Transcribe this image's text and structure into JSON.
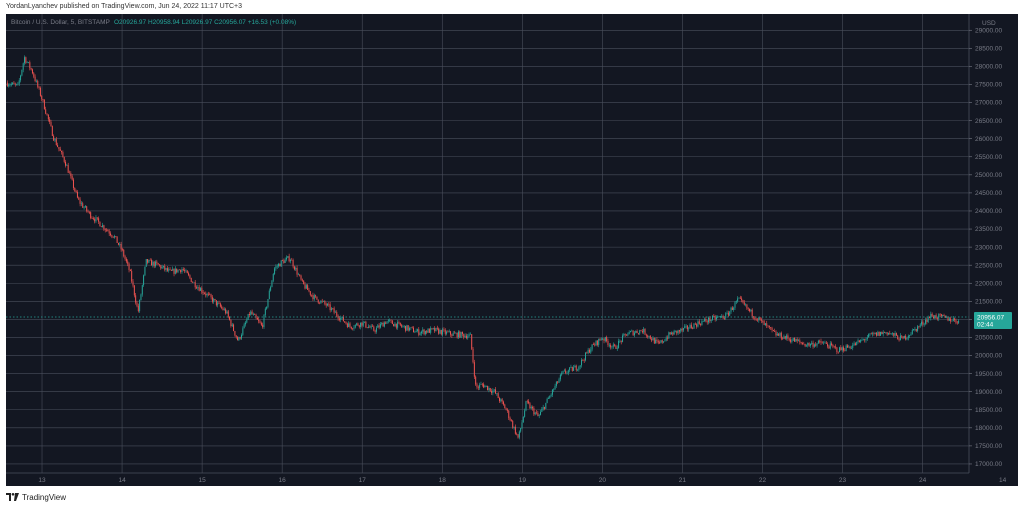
{
  "header": {
    "publisher_line": "YordanLyanchev published on TradingView.com, Jun 24, 2022 11:17 UTC+3"
  },
  "footer": {
    "brand_label": "TradingView",
    "logo_icon": "tradingview-logo-icon"
  },
  "colors": {
    "background": "#131722",
    "grid": "#4a4f5c",
    "up": "#26a69a",
    "down": "#ef5350",
    "text": "#787b86",
    "price_tag": "#26a69a"
  },
  "chart_data": {
    "type": "candlestick",
    "title": "Bitcoin / U.S. Dollar, 5, BITSTAMP",
    "ohlc_label": "O20926.97 H20958.94 L20926.97 C20956.07 +16.53 (+0.08%)",
    "ohlc_values": [
      "20926.97",
      "20958.94",
      "20926.97",
      "20956.07",
      "+16.53 (+0.08%)"
    ],
    "currency_label": "USD",
    "y_ticks": [
      "29000.00",
      "28500.00",
      "28000.00",
      "27500.00",
      "27000.00",
      "26500.00",
      "26000.00",
      "25500.00",
      "25000.00",
      "24500.00",
      "24000.00",
      "23500.00",
      "23000.00",
      "22500.00",
      "22000.00",
      "21500.00",
      "21000.00",
      "20500.00",
      "20000.00",
      "19500.00",
      "19000.00",
      "18500.00",
      "18000.00",
      "17500.00",
      "17000.00"
    ],
    "x_ticks": [
      "13",
      "14",
      "15",
      "16",
      "17",
      "18",
      "19",
      "20",
      "21",
      "22",
      "23",
      "24",
      "14"
    ],
    "ylim": [
      16750,
      29450
    ],
    "x_range_days": [
      12.55,
      24.58
    ],
    "last_price": "20956.07",
    "last_price_value": 20956.07,
    "countdown": "02:44",
    "grid": true,
    "price_path": [
      [
        12.55,
        27550
      ],
      [
        12.7,
        27450
      ],
      [
        12.78,
        28250
      ],
      [
        12.88,
        27850
      ],
      [
        13.0,
        27100
      ],
      [
        13.15,
        26000
      ],
      [
        13.3,
        25300
      ],
      [
        13.45,
        24300
      ],
      [
        13.6,
        23900
      ],
      [
        13.75,
        23600
      ],
      [
        13.9,
        23300
      ],
      [
        14.0,
        22900
      ],
      [
        14.1,
        22300
      ],
      [
        14.2,
        21200
      ],
      [
        14.3,
        22600
      ],
      [
        14.45,
        22500
      ],
      [
        14.6,
        22300
      ],
      [
        14.75,
        22400
      ],
      [
        14.9,
        22000
      ],
      [
        15.0,
        21800
      ],
      [
        15.15,
        21500
      ],
      [
        15.3,
        21200
      ],
      [
        15.45,
        20400
      ],
      [
        15.6,
        21200
      ],
      [
        15.75,
        20800
      ],
      [
        15.9,
        22400
      ],
      [
        16.0,
        22600
      ],
      [
        16.1,
        22700
      ],
      [
        16.25,
        22000
      ],
      [
        16.4,
        21600
      ],
      [
        16.55,
        21400
      ],
      [
        16.7,
        21100
      ],
      [
        16.85,
        20800
      ],
      [
        17.0,
        20900
      ],
      [
        17.15,
        20700
      ],
      [
        17.3,
        20950
      ],
      [
        17.5,
        20800
      ],
      [
        17.7,
        20650
      ],
      [
        17.9,
        20700
      ],
      [
        18.1,
        20600
      ],
      [
        18.35,
        20550
      ],
      [
        18.42,
        19100
      ],
      [
        18.5,
        19200
      ],
      [
        18.65,
        19000
      ],
      [
        18.8,
        18500
      ],
      [
        18.95,
        17700
      ],
      [
        19.05,
        18700
      ],
      [
        19.2,
        18300
      ],
      [
        19.35,
        18900
      ],
      [
        19.5,
        19500
      ],
      [
        19.7,
        19700
      ],
      [
        19.85,
        20200
      ],
      [
        20.0,
        20500
      ],
      [
        20.15,
        20200
      ],
      [
        20.3,
        20600
      ],
      [
        20.5,
        20700
      ],
      [
        20.7,
        20300
      ],
      [
        20.85,
        20600
      ],
      [
        21.0,
        20700
      ],
      [
        21.2,
        20900
      ],
      [
        21.35,
        21000
      ],
      [
        21.55,
        21100
      ],
      [
        21.7,
        21550
      ],
      [
        21.85,
        21200
      ],
      [
        22.0,
        20900
      ],
      [
        22.15,
        20600
      ],
      [
        22.35,
        20450
      ],
      [
        22.55,
        20300
      ],
      [
        22.75,
        20350
      ],
      [
        22.95,
        20150
      ],
      [
        23.15,
        20300
      ],
      [
        23.35,
        20550
      ],
      [
        23.55,
        20650
      ],
      [
        23.75,
        20450
      ],
      [
        23.95,
        20800
      ],
      [
        24.1,
        21100
      ],
      [
        24.25,
        21050
      ],
      [
        24.45,
        20956
      ]
    ]
  }
}
